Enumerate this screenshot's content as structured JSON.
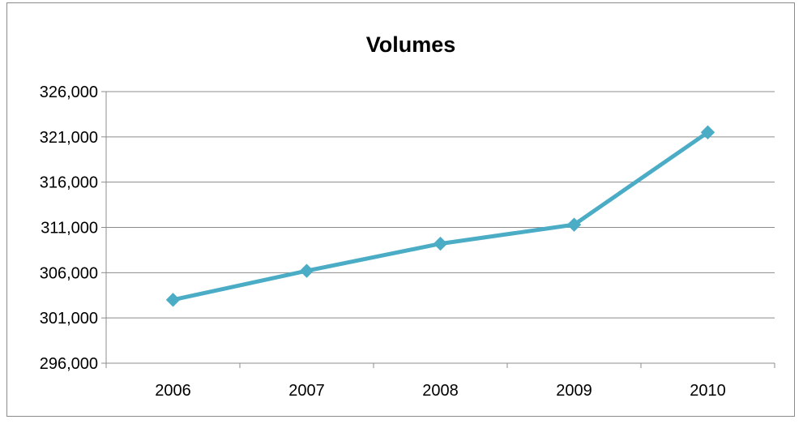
{
  "chart_data": {
    "type": "line",
    "title": "Volumes",
    "xlabel": "",
    "ylabel": "",
    "categories": [
      "2006",
      "2007",
      "2008",
      "2009",
      "2010"
    ],
    "series": [
      {
        "values": [
          303000,
          306200,
          309200,
          311300,
          321500
        ]
      }
    ],
    "ylim": [
      296000,
      326000
    ],
    "yticks": [
      296000,
      301000,
      306000,
      311000,
      316000,
      321000,
      326000
    ],
    "ytick_labels": [
      "296,000",
      "301,000",
      "306,000",
      "311,000",
      "316,000",
      "321,000",
      "326,000"
    ],
    "grid": "horizontal",
    "legend": "none",
    "colors": {
      "series": "#4bacc6",
      "grid": "#8c8c8c",
      "axis": "#8c8c8c"
    }
  }
}
